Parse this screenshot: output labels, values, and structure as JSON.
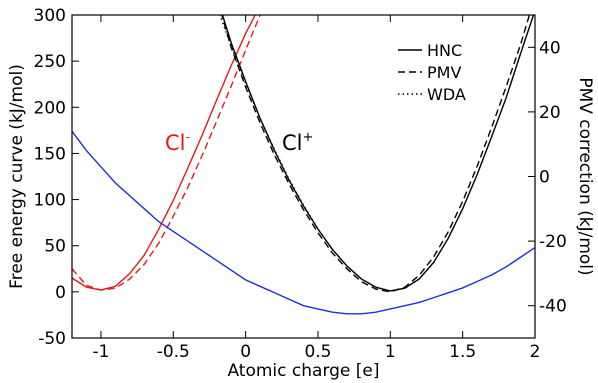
{
  "chart_data": {
    "type": "line",
    "xlabel": "Atomic charge [e]",
    "ylabel": "Free energy curve (kJ/mol)",
    "y2label": "PMV correction (kJ/mol)",
    "xlim": [
      -1.2,
      2
    ],
    "ylim": [
      -50,
      300
    ],
    "y2lim": [
      -50,
      50
    ],
    "xticks": [
      "-1",
      "-0.5",
      "0",
      "0.5",
      "1",
      "1.5",
      "2"
    ],
    "yticks": [
      "-50",
      "0",
      "50",
      "100",
      "150",
      "200",
      "250",
      "300"
    ],
    "y2ticks": [
      "-40",
      "-20",
      "0",
      "20",
      "40"
    ],
    "grid": false,
    "legend": {
      "position": "top-right",
      "entries": [
        {
          "label": "HNC",
          "dash": "solid"
        },
        {
          "label": "PMV",
          "dash": "dashed"
        },
        {
          "label": "WDA",
          "dash": "dotted"
        }
      ]
    },
    "annotations": [
      {
        "text": "Cl",
        "sup": "-",
        "color": "#e31a1c",
        "x": -0.63,
        "y": 155
      },
      {
        "text": "Cl",
        "sup": "+",
        "color": "#000000",
        "x": 0.25,
        "y": 155
      }
    ],
    "series": [
      {
        "color": "#e31a1c",
        "dash": "solid",
        "axis": "left",
        "x": [
          -1.2,
          -1.1,
          -1.0,
          -0.9,
          -0.8,
          -0.7,
          -0.6,
          -0.5,
          -0.4,
          -0.3,
          -0.2,
          -0.1,
          0.0,
          0.05,
          0.1
        ],
        "y": [
          15,
          5,
          2,
          6,
          20,
          40,
          68,
          99,
          134,
          170,
          208,
          245,
          280,
          295,
          312
        ]
      },
      {
        "color": "#e31a1c",
        "dash": "dashed",
        "axis": "left",
        "x": [
          -1.2,
          -1.1,
          -1.0,
          -0.9,
          -0.8,
          -0.7,
          -0.6,
          -0.5,
          -0.4,
          -0.3,
          -0.2,
          -0.1,
          0.0,
          0.1,
          0.15
        ],
        "y": [
          25,
          7,
          2,
          4,
          14,
          30,
          53,
          82,
          113,
          148,
          185,
          223,
          262,
          300,
          318
        ]
      },
      {
        "color": "#000000",
        "dash": "solid",
        "axis": "left",
        "x": [
          -0.17,
          -0.1,
          0.0,
          0.1,
          0.2,
          0.3,
          0.4,
          0.5,
          0.6,
          0.7,
          0.8,
          0.9,
          1.0,
          1.1,
          1.2,
          1.3,
          1.4,
          1.5,
          1.6,
          1.7,
          1.8,
          1.9,
          2.0
        ],
        "y": [
          305,
          270,
          228,
          188,
          153,
          121,
          93,
          68,
          46,
          28,
          14,
          5,
          1,
          4,
          14,
          32,
          58,
          90,
          127,
          168,
          210,
          258,
          305
        ]
      },
      {
        "color": "#000000",
        "dash": "dashed",
        "axis": "left",
        "x": [
          -0.17,
          -0.1,
          0.0,
          0.1,
          0.2,
          0.3,
          0.4,
          0.5,
          0.6,
          0.7,
          0.8,
          0.9,
          1.0,
          1.1,
          1.2,
          1.3,
          1.4,
          1.5,
          1.6,
          1.7,
          1.8,
          1.9,
          2.0
        ],
        "y": [
          303,
          265,
          222,
          183,
          148,
          117,
          89,
          64,
          42,
          25,
          11,
          3,
          0,
          5,
          18,
          38,
          65,
          98,
          136,
          178,
          222,
          268,
          320
        ]
      },
      {
        "color": "#000000",
        "dash": "dotted",
        "axis": "left",
        "x": [
          -0.2,
          -0.1,
          0.0,
          0.1,
          0.2,
          0.3,
          0.4,
          0.5,
          0.6,
          0.7,
          0.8,
          0.9,
          1.0,
          1.1,
          1.2,
          1.3
        ],
        "y": [
          310,
          266,
          226,
          188,
          154,
          122,
          94,
          68,
          46,
          28,
          14,
          5,
          1,
          4,
          14,
          32
        ]
      },
      {
        "color": "#1f2fd6",
        "dash": "solid",
        "axis": "right",
        "x": [
          -1.2,
          -1.1,
          -1.0,
          -0.9,
          -0.8,
          -0.7,
          -0.6,
          -0.5,
          -0.4,
          -0.3,
          -0.2,
          -0.1,
          0.0,
          0.1,
          0.2,
          0.3,
          0.4,
          0.5,
          0.6,
          0.7,
          0.8,
          0.9,
          1.0,
          1.1,
          1.2,
          1.3,
          1.4,
          1.5,
          1.6,
          1.7,
          1.8,
          1.9,
          2.0
        ],
        "y": [
          14,
          8,
          3,
          -2,
          -6,
          -10,
          -14,
          -17,
          -20,
          -23,
          -26,
          -29,
          -32,
          -34,
          -36,
          -38,
          -40,
          -41,
          -42,
          -42.5,
          -42.5,
          -42,
          -41,
          -40,
          -39,
          -37.5,
          -36,
          -34.5,
          -32.5,
          -30.5,
          -28,
          -25,
          -22
        ]
      }
    ]
  }
}
